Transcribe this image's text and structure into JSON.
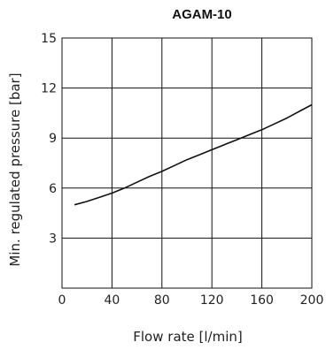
{
  "chart_data": {
    "type": "line",
    "title": "AGAM-10",
    "xlabel": "Flow rate [l/min]",
    "ylabel": "Min. regulated pressure [bar]",
    "xlim": [
      0,
      200
    ],
    "ylim": [
      0,
      15
    ],
    "xticks": [
      0,
      40,
      80,
      120,
      160,
      200
    ],
    "yticks": [
      3,
      6,
      9,
      12,
      15
    ],
    "grid": true,
    "series": [
      {
        "x": [
          10,
          20,
          30,
          40,
          50,
          60,
          70,
          80,
          90,
          100,
          110,
          120,
          130,
          140,
          150,
          160,
          170,
          180,
          190,
          200
        ],
        "y": [
          5.0,
          5.2,
          5.45,
          5.7,
          6.0,
          6.35,
          6.7,
          7.0,
          7.35,
          7.7,
          8.0,
          8.3,
          8.6,
          8.9,
          9.2,
          9.5,
          9.85,
          10.2,
          10.6,
          11.0
        ],
        "color": "#111111"
      }
    ]
  }
}
